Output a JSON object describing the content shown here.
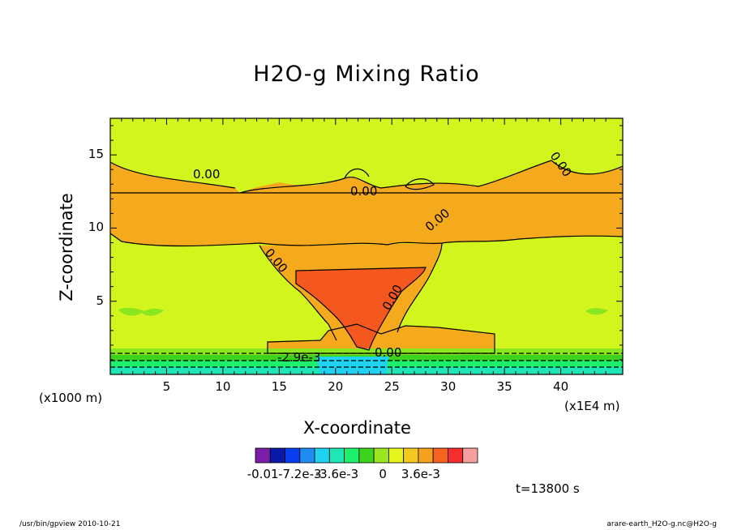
{
  "chart_data": {
    "type": "heatmap",
    "title": "H2O-g Mixing Ratio",
    "xlabel": "X-coordinate",
    "ylabel": "Z-coordinate",
    "x_unit_left": "(x1000 m)",
    "x_unit_right": "(x1E4 m)",
    "xlim": [
      0,
      45.5
    ],
    "ylim": [
      0,
      17.5
    ],
    "x_ticks": [
      5,
      10,
      15,
      20,
      25,
      30,
      35,
      40
    ],
    "y_ticks": [
      5,
      10,
      15
    ],
    "contour_labels": [
      "0.00",
      "0.00",
      "0.00",
      "0.00",
      "0.00",
      "0.00",
      "-2.9e-3",
      "0.00"
    ],
    "colorbar": {
      "colors": [
        "#7a1ea8",
        "#0a1aa8",
        "#0a3cf0",
        "#1e8cf0",
        "#1ed2f0",
        "#1ee6b4",
        "#1ef06e",
        "#3cd21e",
        "#9be61e",
        "#e6f51e",
        "#f5c81e",
        "#f5a01e",
        "#f5641e",
        "#f52d2d",
        "#f5a0a0"
      ],
      "tick_labels": [
        "-0.01",
        "-7.2e-3",
        "-3.6e-3",
        "0",
        "3.6e-3"
      ],
      "tick_values": [
        -0.01,
        -0.0072,
        -0.0036,
        0,
        0.0036
      ]
    },
    "time_label": "t=13800 s",
    "footer_left": "/usr/bin/gpview   2010-10-21",
    "footer_right": "arare-earth_H2O-g.nc@H2O-g"
  }
}
